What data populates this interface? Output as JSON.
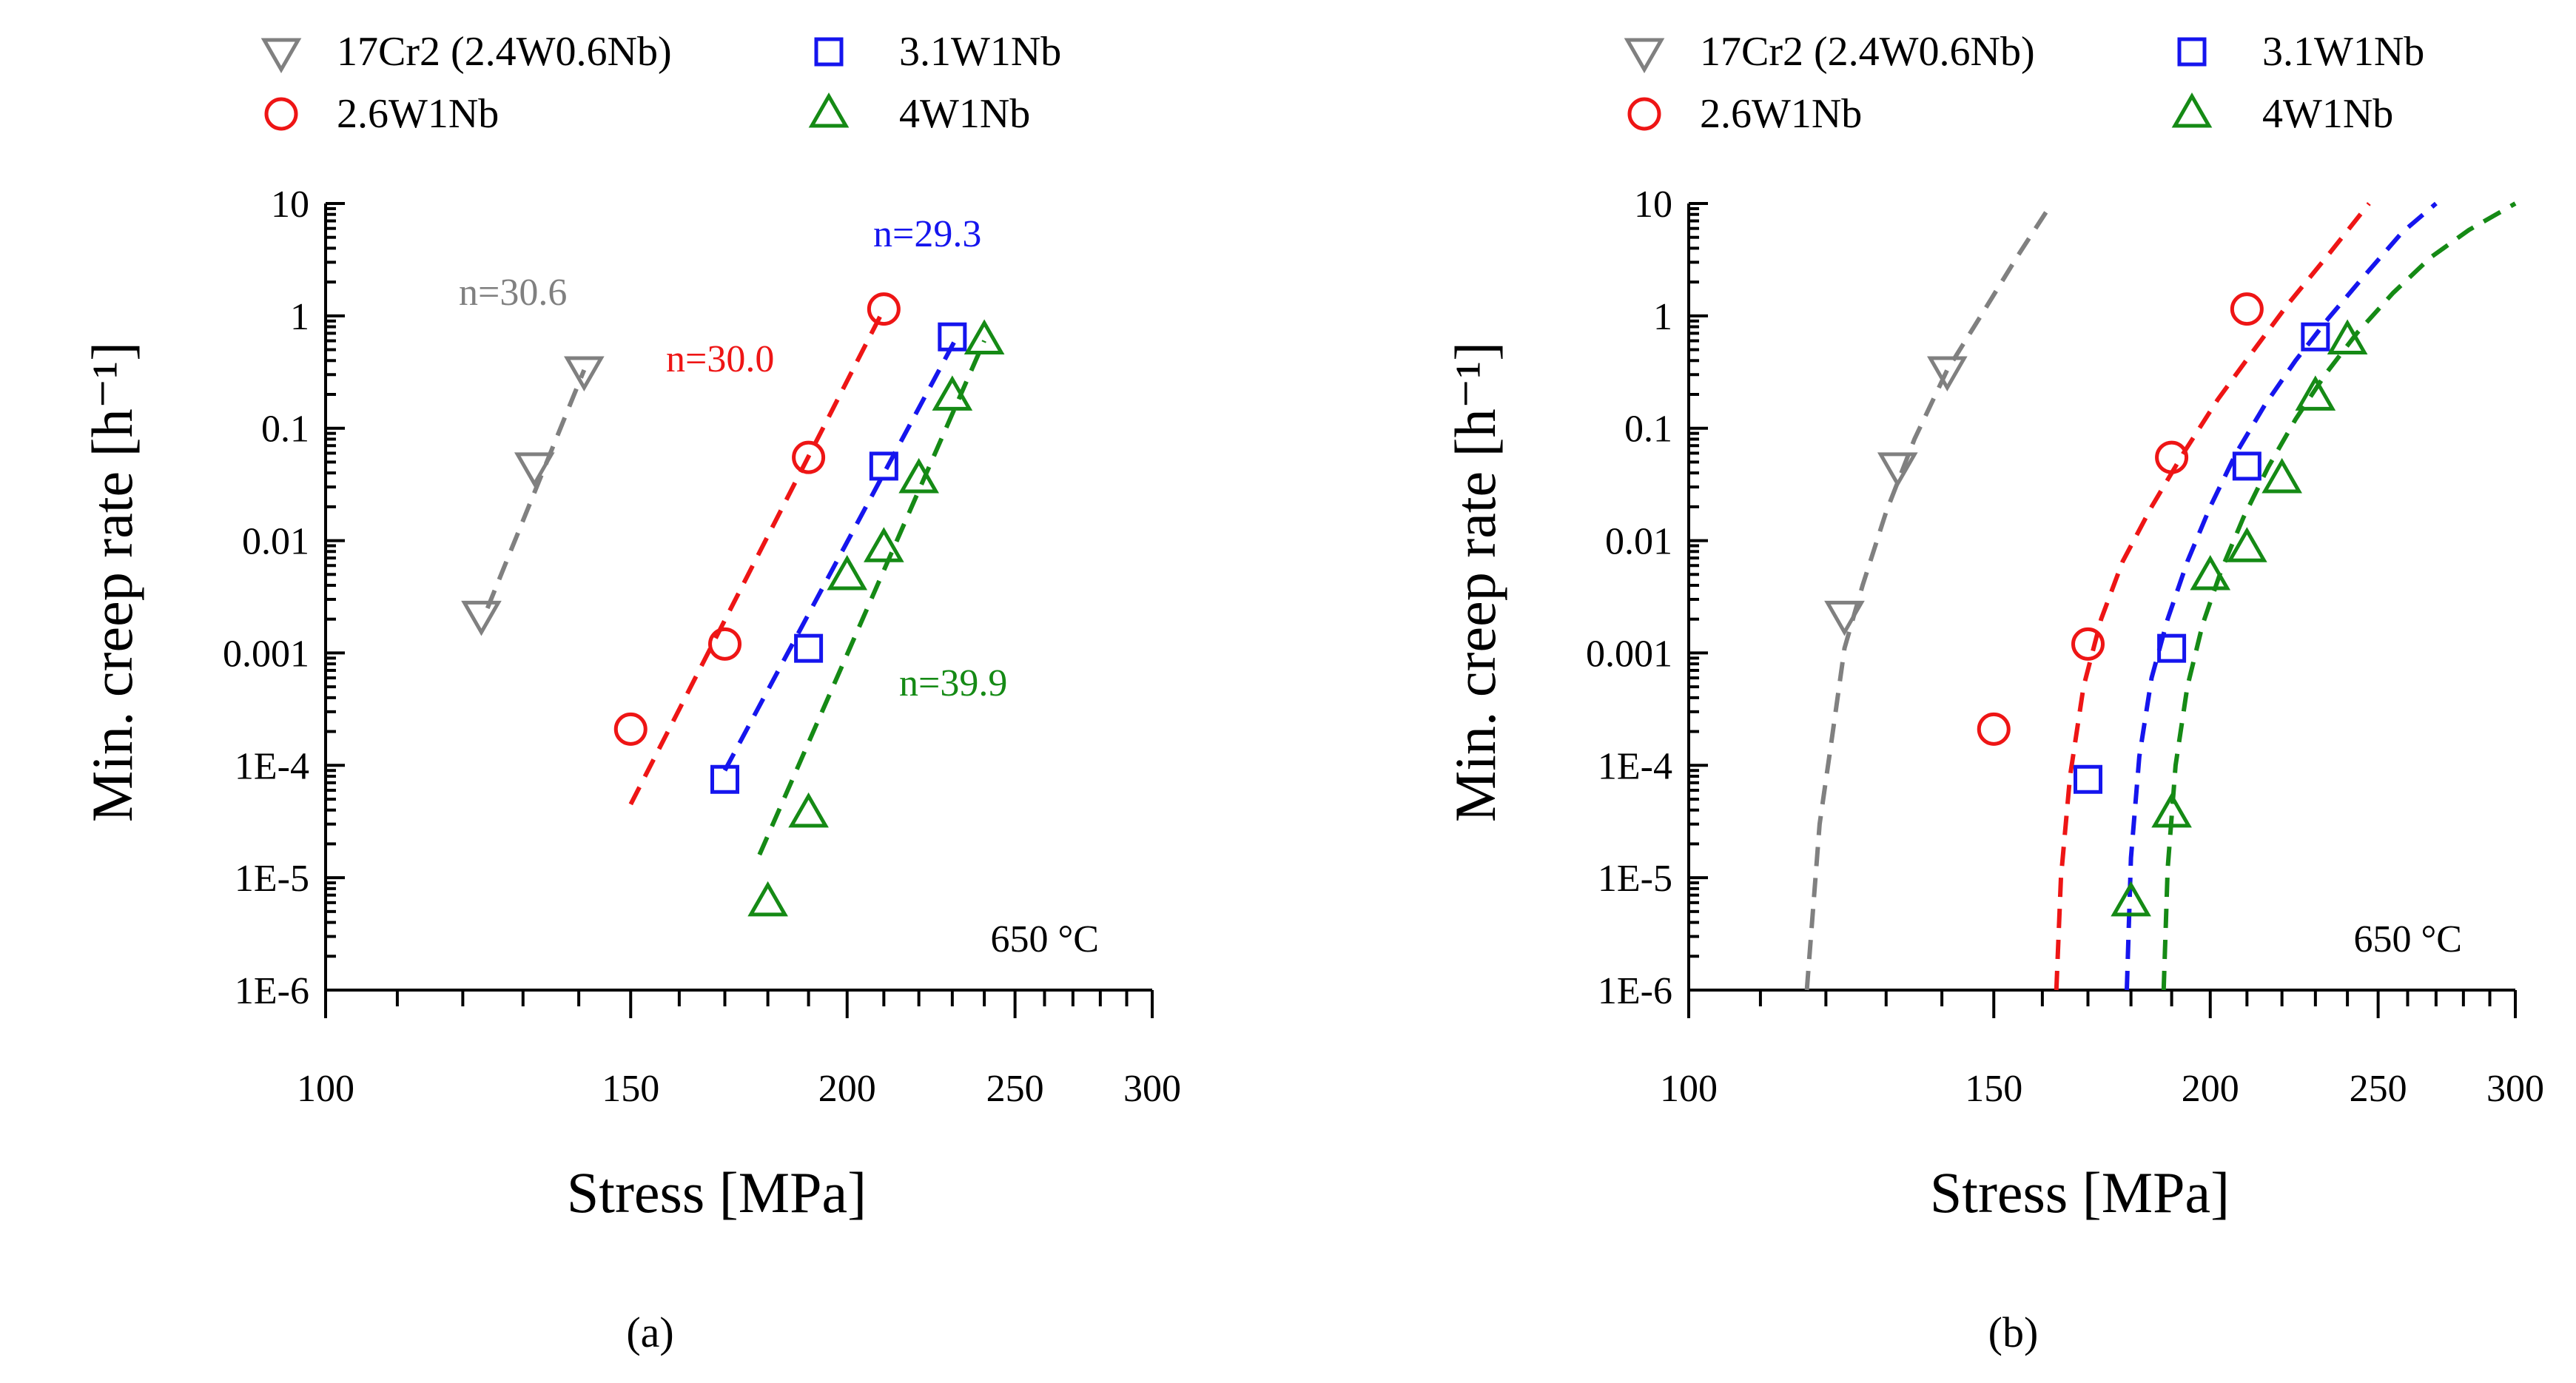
{
  "legend": [
    {
      "name": "17Cr2 (2.4W0.6Nb)",
      "color": "#808080",
      "marker": "triangle-down"
    },
    {
      "name": "3.1W1Nb",
      "color": "#1515ee",
      "marker": "square"
    },
    {
      "name": "2.6W1Nb",
      "color": "#ee1515",
      "marker": "circle"
    },
    {
      "name": "4W1Nb",
      "color": "#158a15",
      "marker": "triangle-up"
    }
  ],
  "chart_data": [
    {
      "type": "scatter",
      "panel_label": "(a)",
      "temperature_label": "650 °C",
      "xlabel": "Stress [MPa]",
      "ylabel": "Min. creep rate [h⁻¹]",
      "xscale": "log",
      "yscale": "log",
      "xlim": [
        100,
        300
      ],
      "ylim": [
        1e-06,
        10
      ],
      "x_ticks": [
        100,
        150,
        200,
        250,
        300
      ],
      "x_tick_labels": [
        "100",
        "150",
        "200",
        "250",
        "300"
      ],
      "y_ticks": [
        1e-06,
        1e-05,
        0.0001,
        0.001,
        0.01,
        0.1,
        1,
        10
      ],
      "y_tick_labels": [
        "1E-6",
        "1E-5",
        "1E-4",
        "0.001",
        "0.01",
        "0.1",
        "1",
        "10"
      ],
      "fit_model": "power law",
      "series": [
        {
          "name": "17Cr2 (2.4W0.6Nb)",
          "x": [
            123,
            132,
            141
          ],
          "y": [
            0.0022,
            0.046,
            0.33
          ],
          "fit_x": [
            124,
            141
          ],
          "fit_y": [
            0.0025,
            0.33
          ],
          "annotation": "n=30.6"
        },
        {
          "name": "2.6W1Nb",
          "x": [
            150,
            170,
            190,
            210
          ],
          "y": [
            0.00021,
            0.0012,
            0.055,
            1.15
          ],
          "fit_x": [
            150,
            210
          ],
          "fit_y": [
            4.5e-05,
            1.15
          ],
          "annotation": "n=30.0"
        },
        {
          "name": "3.1W1Nb",
          "x": [
            170,
            190,
            210,
            230
          ],
          "y": [
            7.5e-05,
            0.0011,
            0.046,
            0.65
          ],
          "fit_x": [
            170,
            232
          ],
          "fit_y": [
            9e-05,
            0.7
          ],
          "annotation": "n=29.3"
        },
        {
          "name": "4W1Nb",
          "x": [
            180,
            190,
            200,
            210,
            220,
            230,
            240
          ],
          "y": [
            6e-06,
            3.7e-05,
            0.0048,
            0.0085,
            0.035,
            0.19,
            0.6
          ],
          "fit_x": [
            178,
            240
          ],
          "fit_y": [
            1.6e-05,
            0.6
          ],
          "annotation": "n=39.9"
        }
      ]
    },
    {
      "type": "scatter",
      "panel_label": "(b)",
      "temperature_label": "650 °C",
      "xlabel": "Stress [MPa]",
      "ylabel": "Min. creep rate [h⁻¹]",
      "xscale": "log",
      "yscale": "log",
      "xlim": [
        100,
        300
      ],
      "ylim": [
        1e-06,
        10
      ],
      "x_ticks": [
        100,
        150,
        200,
        250,
        300
      ],
      "x_tick_labels": [
        "100",
        "150",
        "200",
        "250",
        "300"
      ],
      "y_ticks": [
        1e-06,
        1e-05,
        0.0001,
        0.001,
        0.01,
        0.1,
        1,
        10
      ],
      "y_tick_labels": [
        "1E-6",
        "1E-5",
        "1E-4",
        "0.001",
        "0.01",
        "0.1",
        "1",
        "10"
      ],
      "fit_model": "threshold stress",
      "series": [
        {
          "name": "17Cr2 (2.4W0.6Nb)",
          "x": [
            123,
            132,
            141
          ],
          "y": [
            0.0022,
            0.046,
            0.33
          ],
          "fit_x": [
            117,
            119,
            121,
            123,
            126,
            130,
            135,
            141,
            148,
            155,
            162
          ],
          "fit_y": [
            1e-06,
            3e-05,
            0.00018,
            0.0011,
            0.004,
            0.018,
            0.08,
            0.33,
            1.1,
            3.5,
            10
          ]
        },
        {
          "name": "2.6W1Nb",
          "x": [
            150,
            170,
            190,
            210
          ],
          "y": [
            0.00021,
            0.0012,
            0.055,
            1.15
          ],
          "fit_x": [
            163,
            164,
            166,
            169,
            173,
            178,
            185,
            193,
            202,
            212,
            222,
            234,
            247
          ],
          "fit_y": [
            1e-06,
            1e-05,
            8e-05,
            0.0005,
            0.002,
            0.0065,
            0.02,
            0.06,
            0.18,
            0.5,
            1.3,
            3.5,
            10
          ]
        },
        {
          "name": "3.1W1Nb",
          "x": [
            170,
            190,
            210,
            230
          ],
          "y": [
            7.5e-05,
            0.0011,
            0.046,
            0.65
          ],
          "fit_x": [
            179,
            180,
            182,
            185,
            189,
            194,
            200,
            207,
            215,
            224,
            234,
            245,
            258,
            270
          ],
          "fit_y": [
            1e-06,
            1.5e-05,
            0.00012,
            0.0006,
            0.002,
            0.0065,
            0.02,
            0.06,
            0.16,
            0.4,
            0.95,
            2.2,
            5.5,
            10
          ]
        },
        {
          "name": "4W1Nb",
          "x": [
            180,
            190,
            200,
            210,
            220,
            230,
            240
          ],
          "y": [
            6e-06,
            3.7e-05,
            0.0048,
            0.0085,
            0.035,
            0.19,
            0.6
          ],
          "fit_x": [
            188,
            189,
            191,
            194,
            198,
            203,
            209,
            216,
            224,
            233,
            243,
            255,
            268,
            282,
            300
          ],
          "fit_y": [
            1e-06,
            1.2e-05,
            0.0001,
            0.0005,
            0.0018,
            0.0055,
            0.016,
            0.045,
            0.12,
            0.3,
            0.7,
            1.6,
            3.3,
            5.8,
            10
          ]
        }
      ]
    }
  ]
}
